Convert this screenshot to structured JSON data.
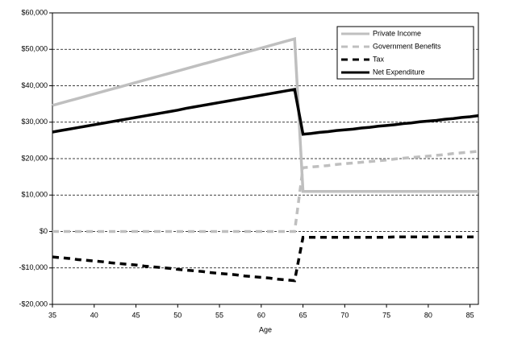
{
  "chart_data": {
    "type": "line",
    "xlabel": "Age",
    "x": [
      35,
      36,
      37,
      38,
      39,
      40,
      41,
      42,
      43,
      44,
      45,
      46,
      47,
      48,
      49,
      50,
      51,
      52,
      53,
      54,
      55,
      56,
      57,
      58,
      59,
      60,
      61,
      62,
      63,
      64,
      65,
      66,
      67,
      68,
      69,
      70,
      71,
      72,
      73,
      74,
      75,
      76,
      77,
      78,
      79,
      80,
      81,
      82,
      83,
      84,
      85,
      86
    ],
    "series": [
      {
        "name": "Private Income",
        "color": "#bfbfbf",
        "dash": false,
        "values": [
          34600,
          35230,
          35860,
          36490,
          37120,
          37750,
          38380,
          39010,
          39640,
          40270,
          40900,
          41530,
          42160,
          42790,
          43420,
          44050,
          44680,
          45310,
          45940,
          46570,
          47200,
          47830,
          48460,
          49090,
          49720,
          50350,
          50980,
          51610,
          52240,
          52870,
          11000,
          11000,
          11000,
          11000,
          11000,
          11000,
          11000,
          11000,
          11000,
          11000,
          11000,
          11000,
          11000,
          11000,
          11000,
          11000,
          11000,
          11000,
          11000,
          11000,
          11000,
          11000
        ]
      },
      {
        "name": "Government Benefits",
        "color": "#bfbfbf",
        "dash": true,
        "values": [
          0,
          0,
          0,
          0,
          0,
          0,
          0,
          0,
          0,
          0,
          0,
          0,
          0,
          0,
          0,
          0,
          0,
          0,
          0,
          0,
          0,
          0,
          0,
          0,
          0,
          0,
          0,
          0,
          0,
          0,
          17500,
          17700,
          17900,
          18100,
          18400,
          18600,
          18800,
          19000,
          19200,
          19400,
          19600,
          19900,
          20100,
          20300,
          20500,
          20700,
          20900,
          21100,
          21400,
          21600,
          21800,
          22000
        ]
      },
      {
        "name": "Tax",
        "color": "#000000",
        "dash": true,
        "values": [
          -7000,
          -7200,
          -7400,
          -7700,
          -7900,
          -8100,
          -8300,
          -8600,
          -8800,
          -9000,
          -9200,
          -9500,
          -9700,
          -9900,
          -10100,
          -10400,
          -10600,
          -10800,
          -11000,
          -11300,
          -11500,
          -11700,
          -11900,
          -12200,
          -12400,
          -12600,
          -12800,
          -13100,
          -13300,
          -13500,
          -1600,
          -1600,
          -1600,
          -1600,
          -1600,
          -1600,
          -1600,
          -1600,
          -1600,
          -1600,
          -1600,
          -1500,
          -1500,
          -1500,
          -1500,
          -1500,
          -1500,
          -1500,
          -1500,
          -1500,
          -1500,
          -1500
        ]
      },
      {
        "name": "Net Expenditure",
        "color": "#000000",
        "dash": false,
        "values": [
          27300,
          27700,
          28100,
          28500,
          28900,
          29300,
          29700,
          30100,
          30500,
          30900,
          31300,
          31700,
          32100,
          32500,
          32900,
          33300,
          33800,
          34200,
          34600,
          35000,
          35400,
          35800,
          36200,
          36600,
          37000,
          37400,
          37800,
          38200,
          38600,
          39000,
          26700,
          26900,
          27200,
          27400,
          27700,
          27900,
          28100,
          28400,
          28600,
          28900,
          29100,
          29300,
          29600,
          29800,
          30100,
          30300,
          30500,
          30800,
          31000,
          31300,
          31500,
          31800
        ]
      }
    ],
    "xlim": [
      35,
      86
    ],
    "xticks": [
      35,
      40,
      45,
      50,
      55,
      60,
      65,
      70,
      75,
      80,
      85
    ],
    "ylim": [
      -20000,
      60000
    ],
    "yticks": [
      {
        "value": -20000,
        "label": "-$20,000"
      },
      {
        "value": -10000,
        "label": "-$10,000"
      },
      {
        "value": 0,
        "label": "$0"
      },
      {
        "value": 10000,
        "label": "$10,000"
      },
      {
        "value": 20000,
        "label": "$20,000"
      },
      {
        "value": 30000,
        "label": "$30,000"
      },
      {
        "value": 40000,
        "label": "$40,000"
      },
      {
        "value": 50000,
        "label": "$50,000"
      },
      {
        "value": 60000,
        "label": "$60,000"
      }
    ],
    "grid": true,
    "legend": "top-right"
  }
}
